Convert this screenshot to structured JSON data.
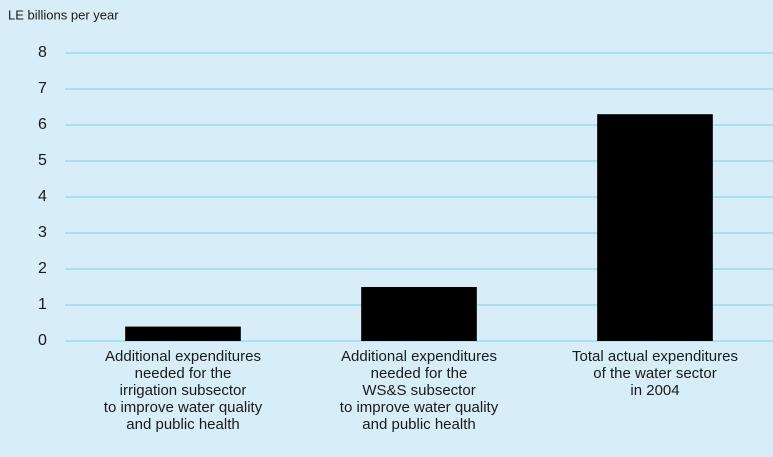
{
  "chart_data": {
    "type": "bar",
    "y_axis_label": "LE billions per year",
    "categories": [
      [
        "Additional expenditures",
        "needed for the",
        "irrigation subsector",
        "to improve water quality",
        "and public health"
      ],
      [
        "Additional expenditures",
        "needed for the",
        "WS&S subsector",
        "to improve water quality",
        "and public health"
      ],
      [
        "Total actual expenditures",
        "of the water sector",
        "in 2004"
      ]
    ],
    "values": [
      0.4,
      1.5,
      6.3
    ],
    "color": "#000000",
    "ylim": [
      0,
      8
    ],
    "yticks": [
      0,
      1,
      2,
      3,
      4,
      5,
      6,
      7,
      8
    ],
    "grid": true
  }
}
